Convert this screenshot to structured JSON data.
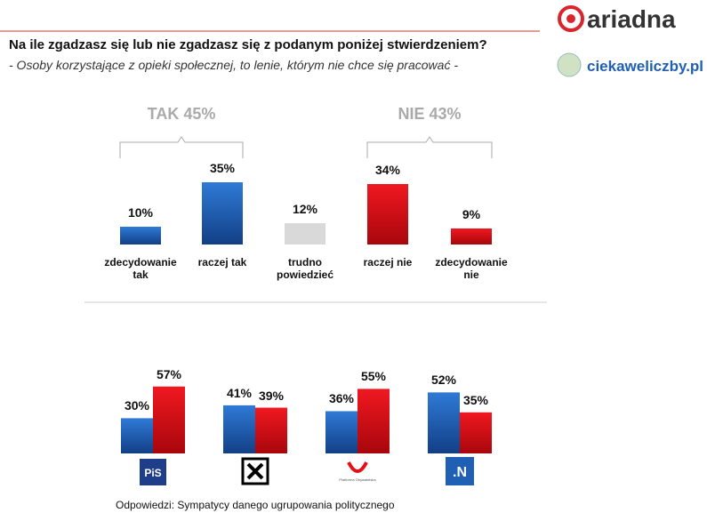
{
  "header": {
    "title": "Na ile zgadzasz się lub nie zgadzasz się z podanym poniżej stwierdzeniem?",
    "subtitle": "- Osoby korzystające z opieki społecznej, to lenie, którym nie chce się pracować -",
    "brand": "ariadna",
    "site": "ciekaweliczby.pl"
  },
  "chart_data": [
    {
      "type": "bar",
      "categories": [
        "zdecydowanie tak",
        "raczej tak",
        "trudno powiedzieć",
        "raczej nie",
        "zdecydowanie nie"
      ],
      "values": [
        10,
        35,
        12,
        34,
        9
      ],
      "value_labels": [
        "10%",
        "35%",
        "12%",
        "34%",
        "9%"
      ],
      "colors": [
        "#1f5fb4",
        "#1f5fb4",
        "#d9d9d9",
        "#e3101a",
        "#e3101a"
      ],
      "ylim": [
        0,
        100
      ],
      "groups": [
        {
          "label": "TAK 45%",
          "span": [
            0,
            1
          ]
        },
        {
          "label": "NIE 43%",
          "span": [
            3,
            4
          ]
        }
      ]
    },
    {
      "type": "grouped_bar",
      "categories": [
        "PiS",
        null,
        "Platforma Obywatelska",
        ".N"
      ],
      "series": [
        {
          "color": "#1f5fb4",
          "values": [
            30,
            41,
            36,
            52
          ],
          "value_labels": [
            "30%",
            "41%",
            "36%",
            "52%"
          ]
        },
        {
          "color": "#e3101a",
          "values": [
            57,
            39,
            55,
            35
          ],
          "value_labels": [
            "57%",
            "39%",
            "55%",
            "35%"
          ]
        }
      ],
      "ylim": [
        0,
        100
      ]
    }
  ],
  "footer": "Odpowiedzi: Sympatycy danego ugrupowania politycznego"
}
